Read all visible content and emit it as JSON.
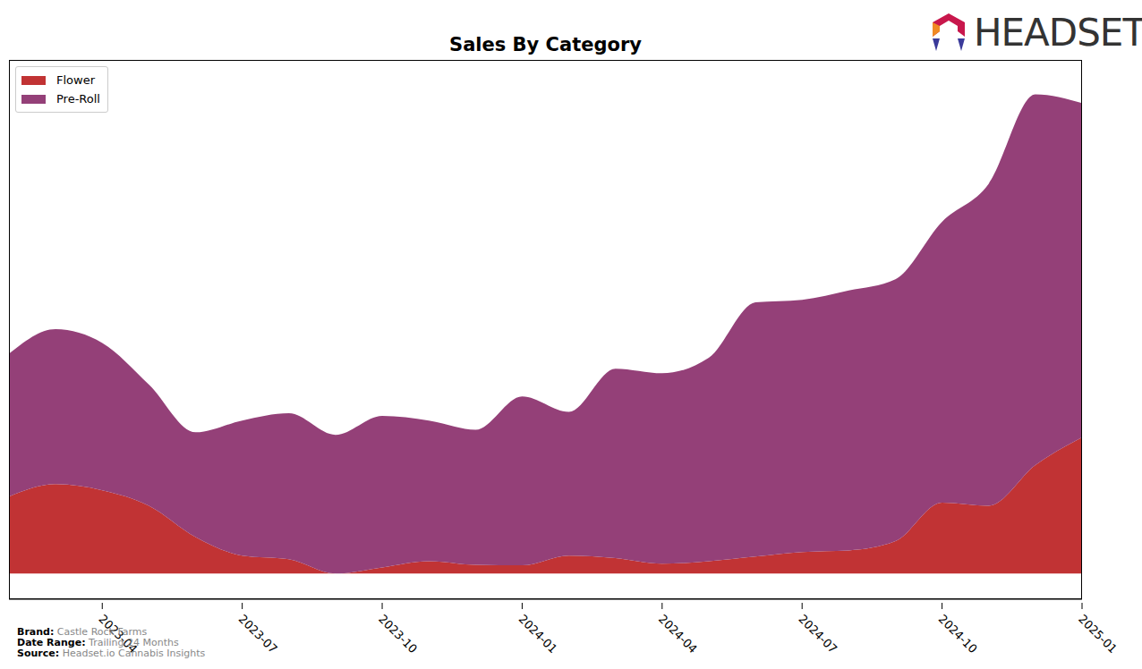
{
  "chart_data": {
    "type": "area",
    "title": "Sales By Category",
    "stacked": true,
    "legend": "upper left",
    "tick_labels": "x",
    "categories": [
      null,
      null,
      "2023-04",
      null,
      null,
      "2023-07",
      null,
      null,
      "2023-10",
      null,
      null,
      "2024-01",
      null,
      null,
      "2024-04",
      null,
      null,
      "2024-07",
      null,
      null,
      "2024-10",
      null,
      null,
      "2025-01"
    ],
    "ylim": [
      -5,
      100
    ],
    "yticks": [],
    "series": [
      {
        "name": "Flower",
        "color": "#c13334",
        "values": [
          15.0,
          17.4,
          16.2,
          13.2,
          7.1,
          3.5,
          2.8,
          0,
          1.2,
          2.4,
          1.7,
          1.6,
          3.5,
          3.0,
          1.9,
          2.4,
          3.3,
          4.2,
          4.5,
          6.3,
          13.8,
          13.2,
          21.1,
          26.5
        ]
      },
      {
        "name": "Pre-Roll",
        "color": "#944078",
        "values": [
          27.8,
          30.2,
          28.7,
          23.6,
          20.4,
          26.3,
          28.4,
          27.0,
          29.5,
          27.4,
          26.3,
          32.9,
          28.0,
          36.9,
          37.1,
          39.6,
          49.5,
          49.1,
          50.6,
          51.0,
          54.7,
          62.7,
          72.2,
          65.1
        ]
      }
    ]
  },
  "logo": "HEADSET",
  "footer": [
    {
      "label": "Brand:",
      "value": "Castle Rock Farms"
    },
    {
      "label": "Date Range:",
      "value": "Trailing 24 Months"
    },
    {
      "label": "Source:",
      "value": "Headset.io Cannabis Insights"
    }
  ]
}
